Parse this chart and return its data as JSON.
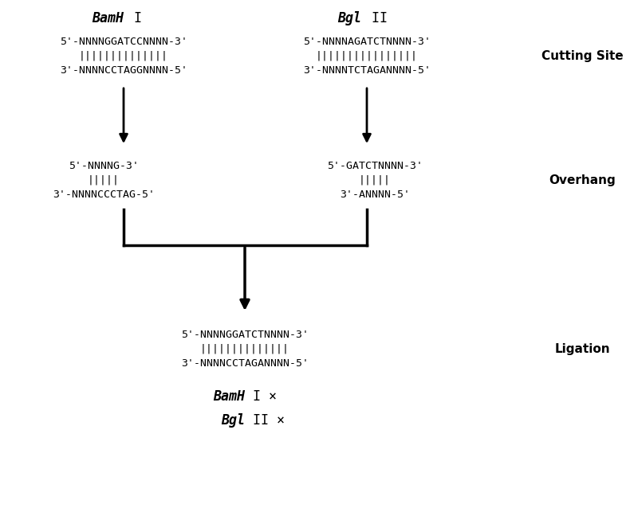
{
  "bg_color": "#ffffff",
  "bamh_header_italic": "BamH",
  "bamh_header_roman": " I",
  "bgl_header_italic": "Bgl",
  "bgl_header_roman": " II",
  "cutting_site_label": "Cutting Site",
  "overhang_label": "Overhang",
  "ligation_label": "Ligation",
  "bamh_cut1": "5'-NNNNGGATCCNNNN-3'",
  "bamh_cut2": "||||||||||||||",
  "bamh_cut3": "3'-NNNNCCTAGGNNNN-5'",
  "bgl_cut1": "5'-NNNNAGATCTNNNN-3'",
  "bgl_cut2": "||||||||||||||||",
  "bgl_cut3": "3'-NNNNTCTAGANNNN-5'",
  "bamh_oh1": "5'-NNNNG-3'",
  "bamh_oh2": "|||||",
  "bamh_oh3": "3'-NNNNCCCTAG-5'",
  "bgl_oh1": "5'-GATCTNNNN-3'",
  "bgl_oh2": "|||||",
  "bgl_oh3": "3'-ANNNN-5'",
  "lig1": "5'-NNNNGGATCTNNNN-3'",
  "lig2": "||||||||||||||",
  "lig3": "3'-NNNNCCTAGANNNN-5'",
  "bamh_x_italic": "BamH",
  "bamh_x_roman": " I ×",
  "bgl_x_italic": "Bgl",
  "bgl_x_roman": " II ×",
  "fs_seq": 9.5,
  "fs_label": 11,
  "fs_header": 12
}
